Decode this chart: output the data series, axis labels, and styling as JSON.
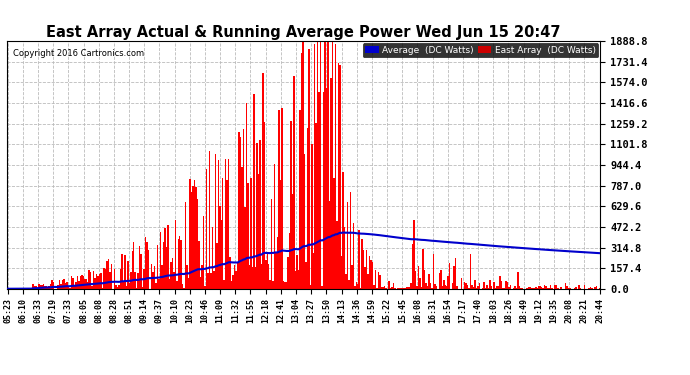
{
  "title": "East Array Actual & Running Average Power Wed Jun 15 20:47",
  "copyright": "Copyright 2016 Cartronics.com",
  "ymax": 1888.8,
  "yticks": [
    0.0,
    157.4,
    314.8,
    472.2,
    629.6,
    787.0,
    944.4,
    1101.8,
    1259.2,
    1416.6,
    1574.0,
    1731.4,
    1888.8
  ],
  "bar_color": "#FF0000",
  "avg_color": "#0000CC",
  "background_color": "#FFFFFF",
  "plot_bg_color": "#FFFFFF",
  "grid_color": "#AAAAAA",
  "legend_avg_bg": "#0000CC",
  "legend_east_bg": "#CC0000",
  "n_bars": 400,
  "seed": 123,
  "time_labels": [
    "05:23",
    "06:10",
    "06:33",
    "07:19",
    "07:33",
    "08:05",
    "08:08",
    "08:28",
    "08:51",
    "09:14",
    "09:37",
    "10:10",
    "10:23",
    "10:46",
    "11:09",
    "11:32",
    "11:55",
    "12:18",
    "12:41",
    "13:04",
    "13:27",
    "13:50",
    "14:13",
    "14:36",
    "14:59",
    "15:22",
    "15:45",
    "16:08",
    "16:31",
    "16:54",
    "17:17",
    "17:40",
    "18:03",
    "18:26",
    "18:49",
    "19:12",
    "19:35",
    "20:08",
    "20:21",
    "20:44"
  ]
}
